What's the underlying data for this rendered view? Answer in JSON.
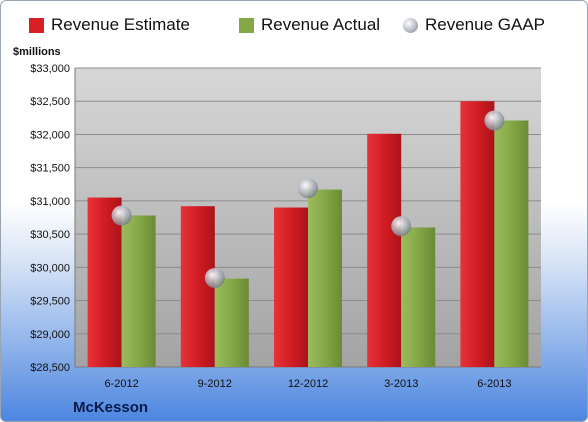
{
  "legend": [
    {
      "label": "Revenue Estimate",
      "color": "#d91f26",
      "marker": "square"
    },
    {
      "label": "Revenue Actual",
      "color": "#85a847",
      "marker": "square"
    },
    {
      "label": "Revenue GAAP",
      "color": "#c8ccd2",
      "marker": "circle"
    }
  ],
  "chart_data": {
    "type": "bar",
    "title": "",
    "xlabel": "",
    "ylabel": "$millions",
    "company": "McKesson",
    "categories": [
      "6-2012",
      "9-2012",
      "12-2012",
      "3-2013",
      "6-2013"
    ],
    "ylim": [
      28500,
      33000
    ],
    "yticks": [
      "$28,500",
      "$29,000",
      "$29,500",
      "$30,000",
      "$30,500",
      "$31,000",
      "$31,500",
      "$32,000",
      "$32,500",
      "$33,000"
    ],
    "grid": true,
    "legend_position": "top",
    "series": [
      {
        "name": "Revenue Estimate",
        "type": "bar",
        "color": "#d91f26",
        "values": [
          31050,
          30920,
          30900,
          32010,
          32500
        ]
      },
      {
        "name": "Revenue Actual",
        "type": "bar",
        "color": "#85a847",
        "values": [
          30780,
          29830,
          31170,
          30600,
          32210
        ]
      },
      {
        "name": "Revenue GAAP",
        "type": "marker",
        "color": "#c8ccd2",
        "values": [
          30780,
          29840,
          31190,
          30620,
          32210
        ]
      }
    ]
  }
}
